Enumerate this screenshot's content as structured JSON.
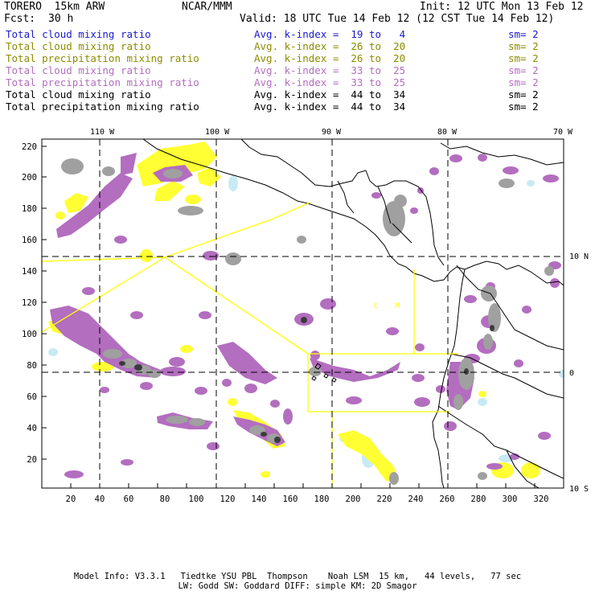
{
  "header": {
    "model": "TORERO  15km ARW",
    "center": "NCAR/MMM",
    "init": "Init: 12 UTC Mon 13 Feb 12",
    "fcst_label": "Fcst:",
    "fcst_value": "30 h",
    "valid": "Valid: 18 UTC Tue 14 Feb 12 (12 CST Tue 14 Feb 12)"
  },
  "legend": [
    {
      "field": "Total cloud mixing ratio",
      "index": "Avg. k-index =  19 to   4",
      "sm": "sm= 2",
      "color": "#1a1acc"
    },
    {
      "field": "Total cloud mixing ratio",
      "index": "Avg. k-index =  26 to  20",
      "sm": "sm= 2",
      "color": "#8c8c00"
    },
    {
      "field": "Total precipitation mixing ratio",
      "index": "Avg. k-index =  26 to  20",
      "sm": "sm= 2",
      "color": "#8c8c00"
    },
    {
      "field": "Total cloud mixing ratio",
      "index": "Avg. k-index =  33 to  25",
      "sm": "sm= 2",
      "color": "#b36ebf"
    },
    {
      "field": "Total precipitation mixing ratio",
      "index": "Avg. k-index =  33 to  25",
      "sm": "sm= 2",
      "color": "#b36ebf"
    },
    {
      "field": "Total cloud mixing ratio",
      "index": "Avg. k-index =  44 to  34",
      "sm": "sm= 2",
      "color": "#000000"
    },
    {
      "field": "Total precipitation mixing ratio",
      "index": "Avg. k-index =  44 to  34",
      "sm": "sm= 2",
      "color": "#000000"
    }
  ],
  "map": {
    "lon_labels": [
      "110 W",
      "100 W",
      "90 W",
      "80 W",
      "70 W"
    ],
    "lat_labels": [
      "10 N",
      "0",
      "10 S"
    ],
    "grid_y_labels": [
      "220",
      "200",
      "180",
      "160",
      "140",
      "120",
      "100",
      "80",
      "60",
      "40",
      "20"
    ],
    "grid_x_labels": [
      "20",
      "40",
      "60",
      "80",
      "100",
      "120",
      "140",
      "160",
      "180",
      "200",
      "220",
      "240",
      "260",
      "280",
      "300",
      "320"
    ],
    "colors": {
      "yellow": "#ffff33",
      "violet": "#b36ebf",
      "gray": "#a0a0a0",
      "dark": "#505050",
      "lightblue": "#c8eaf5",
      "domain_line": "#ffff00"
    }
  },
  "footer": {
    "line1": "Model Info: V3.3.1   Tiedtke YSU PBL  Thompson    Noah LSM  15 km,   44 levels,   77 sec",
    "line2": "LW: Godd SW: Goddard DIFF: simple KM: 2D Smagor"
  }
}
